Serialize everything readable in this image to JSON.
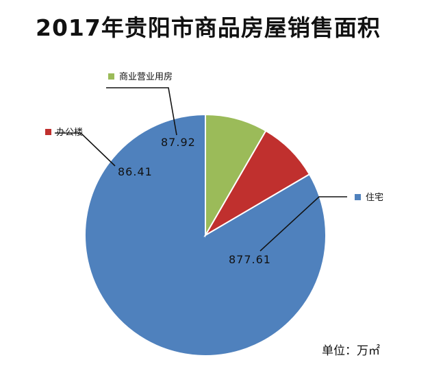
{
  "chart_data": {
    "type": "pie",
    "title": "2017年贵阳市商品房屋销售面积",
    "unit_label": "单位：万㎡",
    "slices": [
      {
        "label": "住宅",
        "value": 877.61,
        "value_label": "877.61",
        "color": "#4f81bd"
      },
      {
        "label": "办公楼",
        "value": 86.41,
        "value_label": "86.41",
        "color": "#c0302e"
      },
      {
        "label": "商业营业用房",
        "value": 87.92,
        "value_label": "87.92",
        "color": "#9bbb59"
      }
    ]
  }
}
